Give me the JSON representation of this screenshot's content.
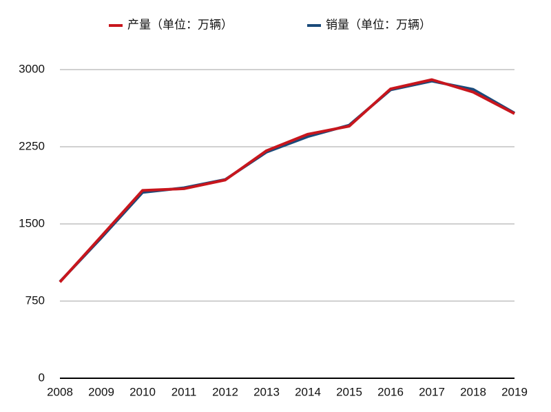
{
  "chart_data": {
    "type": "line",
    "categories": [
      "2008",
      "2009",
      "2010",
      "2011",
      "2012",
      "2013",
      "2014",
      "2015",
      "2016",
      "2017",
      "2018",
      "2019"
    ],
    "series": [
      {
        "name": "产量（单位：万辆）",
        "color": "#c8161d",
        "values": [
          935,
          1379,
          1826,
          1842,
          1927,
          2212,
          2372,
          2450,
          2812,
          2902,
          2781,
          2572
        ]
      },
      {
        "name": "销量（单位：万辆）",
        "color": "#1a4a7a",
        "values": [
          938,
          1364,
          1806,
          1851,
          1931,
          2198,
          2349,
          2460,
          2803,
          2888,
          2808,
          2577
        ]
      }
    ],
    "ylim": [
      0,
      3000
    ],
    "yticks": [
      0,
      750,
      1500,
      2250,
      3000
    ],
    "grid": true,
    "legend": "top"
  }
}
